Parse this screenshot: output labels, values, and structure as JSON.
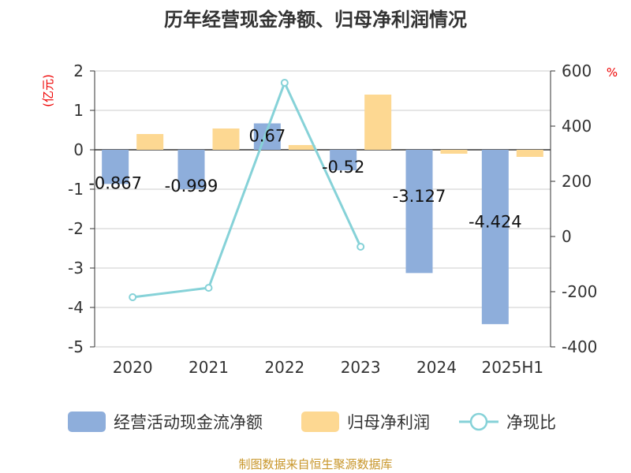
{
  "chart_data": {
    "type": "bar",
    "title": "历年经营现金净额、归母净利润情况",
    "categories": [
      "2020",
      "2021",
      "2022",
      "2023",
      "2024",
      "2025H1"
    ],
    "left_axis": {
      "label": "(亿元)",
      "ylim": [
        -5,
        2
      ],
      "ticks": [
        "2",
        "1",
        "0",
        "-1",
        "-2",
        "-3",
        "-4",
        "-5"
      ]
    },
    "right_axis": {
      "label": "%",
      "ylim": [
        -400,
        600
      ],
      "ticks": [
        "600",
        "400",
        "200",
        "0",
        "-200",
        "-400"
      ]
    },
    "series": [
      {
        "name": "经营活动现金流净额",
        "type": "bar",
        "axis": "left",
        "color": "#8eaedb",
        "values": [
          -0.867,
          -0.999,
          0.67,
          -0.52,
          -3.127,
          -4.424
        ],
        "labels": [
          "-0.867",
          "-0.999",
          "0.67",
          "-0.52",
          "-3.127",
          "-4.424"
        ]
      },
      {
        "name": "归母净利润",
        "type": "bar",
        "axis": "left",
        "color": "#fdd892",
        "values": [
          0.4,
          0.54,
          0.12,
          1.4,
          -0.1,
          -0.18
        ]
      },
      {
        "name": "净现比",
        "type": "line",
        "axis": "right",
        "color": "#86d2d8",
        "values": [
          -220,
          -186,
          557,
          -37,
          null,
          null
        ]
      }
    ],
    "legend_placement": "bottom",
    "grid": true
  },
  "source": "制图数据来自恒生聚源数据库"
}
